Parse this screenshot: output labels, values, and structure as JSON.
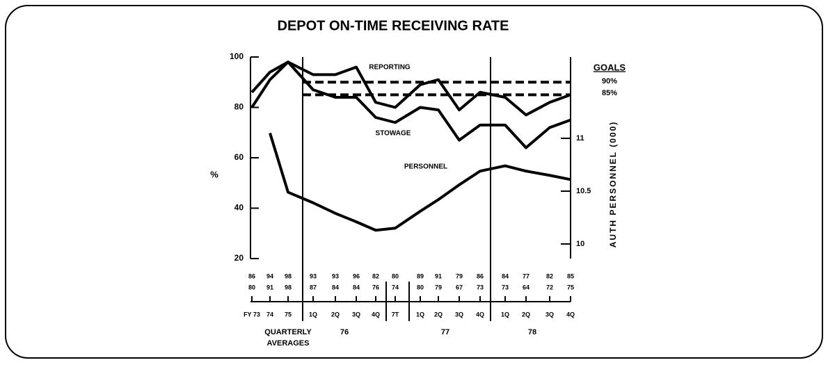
{
  "chart_data": {
    "type": "line",
    "title": "DEPOT ON-TIME RECEIVING RATE",
    "y_label": "%",
    "y2_label": "AUTH PERSONNEL (000)",
    "categories": [
      "FY 73",
      "74",
      "75",
      "1Q",
      "2Q",
      "3Q",
      "4Q",
      "7T",
      "1Q",
      "2Q",
      "3Q",
      "4Q",
      "1Q",
      "2Q",
      "3Q",
      "4Q"
    ],
    "groups": [
      {
        "label": "QUARTERLY AVERAGES"
      },
      {
        "label": "76"
      },
      {
        "label": "77"
      },
      {
        "label": "78"
      }
    ],
    "series": [
      {
        "name": "REPORTING",
        "color": "#000000",
        "values": [
          86,
          94,
          98,
          93,
          93,
          96,
          82,
          80,
          89,
          91,
          79,
          86,
          84,
          77,
          82,
          85
        ]
      },
      {
        "name": "STOWAGE",
        "color": "#000000",
        "values": [
          80,
          91,
          98,
          87,
          84,
          84,
          76,
          74,
          80,
          79,
          67,
          73,
          73,
          64,
          72,
          75
        ]
      },
      {
        "name": "PERSONNEL",
        "color": "#000000",
        "axis": "y2",
        "values": [
          null,
          11.05,
          10.49,
          10.39,
          10.29,
          10.21,
          10.13,
          10.15,
          10.31,
          10.42,
          10.56,
          10.69,
          10.74,
          10.69,
          10.65,
          10.61
        ]
      }
    ],
    "goals_title": "GOALS",
    "goals": [
      {
        "value": 90,
        "label": "90%"
      },
      {
        "value": 85,
        "label": "85%"
      }
    ],
    "ylim": [
      20,
      100
    ],
    "yticks": [
      20,
      40,
      60,
      80,
      100
    ],
    "y2lim": [
      9.862,
      11.77
    ],
    "y2ticks": [
      10,
      {
        "value": 10.5,
        "label": "10.5"
      },
      11
    ]
  }
}
